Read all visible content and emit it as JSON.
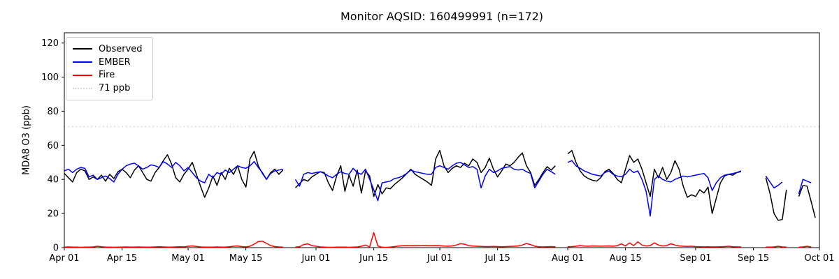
{
  "chart_data": {
    "type": "line",
    "title": "Monitor AQSID: 160499991 (n=172)",
    "xlabel": "",
    "ylabel": "MDA8 O3 (ppb)",
    "ylim": [
      0,
      126
    ],
    "x_domain_days": [
      0,
      183
    ],
    "x_start_date": "Apr 01",
    "x_end_date": "Oct 01",
    "grid": false,
    "legend_position": "upper left",
    "y_ticks": [
      0,
      20,
      40,
      60,
      80,
      100,
      120
    ],
    "x_ticks": [
      {
        "label": "Apr 01",
        "day": 0
      },
      {
        "label": "Apr 15",
        "day": 14
      },
      {
        "label": "May 01",
        "day": 30
      },
      {
        "label": "May 15",
        "day": 44
      },
      {
        "label": "Jun 01",
        "day": 61
      },
      {
        "label": "Jun 15",
        "day": 75
      },
      {
        "label": "Jul 01",
        "day": 91
      },
      {
        "label": "Jul 15",
        "day": 105
      },
      {
        "label": "Aug 01",
        "day": 122
      },
      {
        "label": "Aug 15",
        "day": 136
      },
      {
        "label": "Sep 01",
        "day": 153
      },
      {
        "label": "Sep 15",
        "day": 167
      },
      {
        "label": "Oct 01",
        "day": 183
      }
    ],
    "threshold": {
      "label": "71 ppb",
      "value": 71,
      "color": "#d3d3d3",
      "style": "dotted"
    },
    "series": [
      {
        "name": "Observed",
        "color": "#000000",
        "values": [
          43.5,
          41,
          38.5,
          44,
          46,
          45,
          40,
          41.5,
          40,
          42.5,
          39,
          43,
          40.5,
          44.5,
          46,
          44,
          41,
          45.5,
          48,
          44,
          40,
          39,
          44,
          47,
          51,
          54.5,
          49,
          41,
          38.5,
          43,
          46,
          50,
          43,
          36,
          29.5,
          35,
          42,
          36.5,
          44,
          40,
          46.5,
          43,
          48,
          40,
          35.5,
          52,
          56.5,
          48,
          43.5,
          40,
          44,
          46,
          43,
          45.5,
          null,
          null,
          35,
          37.5,
          40,
          39,
          41.5,
          43,
          44.5,
          44,
          38,
          33.5,
          42,
          48,
          33,
          42.5,
          36,
          45.5,
          32,
          45,
          42,
          30,
          37,
          31.5,
          35,
          34.5,
          37,
          39,
          41,
          43.5,
          46,
          43,
          41.5,
          40,
          38.5,
          36.5,
          52,
          57,
          48,
          44,
          46.5,
          48,
          47,
          49.5,
          48,
          52,
          50,
          44,
          47,
          52.5,
          46,
          41.5,
          45,
          49,
          48,
          50,
          53,
          55.5,
          48,
          44,
          36.5,
          40,
          44,
          47.5,
          45.5,
          48,
          null,
          null,
          55,
          57,
          50,
          45,
          42,
          40.5,
          39.5,
          39,
          41,
          44.5,
          46,
          43.5,
          40,
          38,
          46,
          54,
          50,
          52,
          46,
          38,
          30,
          46,
          41,
          47,
          40,
          44,
          51,
          46,
          36,
          29.5,
          31,
          30,
          34,
          32,
          35.5,
          20,
          29,
          38,
          42,
          43,
          42.5,
          44,
          44.5,
          null,
          null,
          null,
          null,
          null,
          41,
          32,
          20,
          16,
          16.5,
          34,
          null,
          null,
          30,
          36.5,
          36,
          27,
          17.5
        ]
      },
      {
        "name": "EMBER",
        "color": "#0000ff",
        "values": [
          45,
          46,
          44,
          46,
          47,
          46.5,
          41.5,
          42.5,
          40,
          41,
          42,
          40.5,
          38.5,
          43,
          46,
          48,
          49,
          49.5,
          48,
          46,
          47,
          48.5,
          48,
          47,
          50.5,
          49,
          47,
          50,
          48,
          45,
          47,
          44,
          41,
          39,
          38,
          43,
          41,
          44,
          43,
          45.5,
          44,
          46,
          48,
          47,
          46.5,
          48,
          50.5,
          47,
          44,
          40,
          43.5,
          45,
          45.5,
          46,
          null,
          null,
          40,
          36,
          43,
          44,
          43.5,
          44,
          44.5,
          43.5,
          42,
          41,
          43,
          44.5,
          43.5,
          43,
          46.5,
          44,
          43,
          46,
          40,
          34,
          27.5,
          38,
          38.5,
          39,
          40.5,
          41,
          42,
          43.5,
          45.5,
          44.5,
          44,
          43.5,
          43,
          43,
          47,
          48,
          47,
          46,
          48,
          49.5,
          50,
          48.5,
          47,
          47.5,
          46,
          35,
          42,
          46,
          44,
          45,
          46.5,
          47,
          47.5,
          46,
          45.5,
          46,
          44.5,
          43.5,
          35,
          39,
          43,
          46,
          44.5,
          43,
          null,
          null,
          50,
          51,
          48,
          46.5,
          45,
          44,
          43,
          42.5,
          42,
          44,
          45,
          43,
          42,
          41.5,
          43,
          46,
          44,
          45,
          40,
          33,
          18.5,
          40,
          42,
          40,
          39,
          38.5,
          40,
          41,
          42,
          41.5,
          42,
          42.5,
          43,
          43.5,
          41,
          33.5,
          38,
          41,
          42.5,
          43,
          43.5,
          44,
          45,
          null,
          null,
          null,
          null,
          null,
          42,
          38.5,
          35,
          36.5,
          38.5,
          null,
          null,
          null,
          31.5,
          40,
          39,
          38,
          null
        ]
      },
      {
        "name": "Fire",
        "color": "#ff0000",
        "values": [
          0.3,
          0.4,
          0.3,
          0.3,
          0.2,
          0.3,
          0.3,
          0.4,
          0.8,
          0.5,
          0.3,
          0.3,
          0.2,
          0.3,
          0.3,
          0.4,
          0.3,
          0.3,
          0.4,
          0.3,
          0.3,
          0.3,
          0.4,
          0.5,
          0.4,
          0.3,
          0.3,
          0.4,
          0.5,
          0.4,
          0.8,
          1.0,
          0.7,
          0.4,
          0.3,
          0.3,
          0.3,
          0.4,
          0.3,
          0.3,
          0.5,
          0.8,
          1.0,
          0.6,
          0.4,
          0.8,
          2.0,
          3.5,
          3.8,
          2.5,
          1.2,
          0.6,
          0.4,
          0.3,
          null,
          null,
          0.3,
          0.5,
          1.8,
          2.2,
          1.2,
          0.8,
          0.4,
          0.3,
          0.2,
          0.2,
          0.3,
          0.3,
          0.3,
          0.2,
          0.3,
          0.4,
          0.8,
          1.5,
          0.4,
          8.8,
          1.0,
          0.2,
          0.2,
          0.3,
          0.6,
          0.9,
          1.1,
          1.2,
          1.2,
          1.1,
          1.2,
          1.3,
          1.2,
          1.1,
          1.2,
          1.1,
          0.9,
          0.8,
          1.0,
          1.5,
          2.3,
          2.0,
          1.2,
          0.9,
          0.8,
          0.7,
          0.6,
          0.6,
          0.7,
          0.6,
          0.5,
          0.6,
          0.7,
          0.8,
          1.0,
          1.5,
          2.4,
          1.8,
          0.8,
          0.5,
          0.4,
          0.5,
          0.6,
          0.5,
          null,
          null,
          0.5,
          0.6,
          0.8,
          1.2,
          0.9,
          0.8,
          1.0,
          0.9,
          0.8,
          0.9,
          1.0,
          0.8,
          1.1,
          2.2,
          1.0,
          2.8,
          1.2,
          3.4,
          1.5,
          1.0,
          1.2,
          2.8,
          1.5,
          1.0,
          1.2,
          2.3,
          1.5,
          1.0,
          0.8,
          0.7,
          0.8,
          0.6,
          0.5,
          0.4,
          0.5,
          0.4,
          0.4,
          0.5,
          0.6,
          0.8,
          0.5,
          0.4,
          0.4,
          null,
          null,
          null,
          null,
          null,
          0.3,
          0.3,
          0.4,
          0.8,
          0.4,
          0.3,
          null,
          null,
          0.3,
          0.4,
          0.8,
          0.4,
          null
        ]
      }
    ]
  }
}
